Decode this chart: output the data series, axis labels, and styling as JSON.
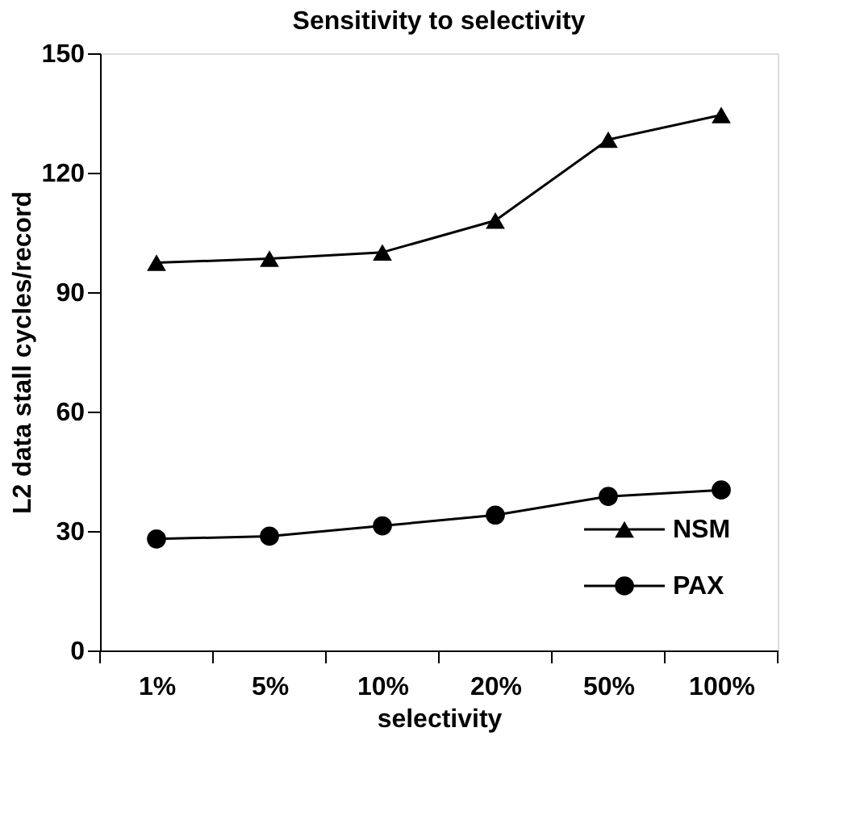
{
  "chart_data": {
    "type": "line",
    "title": "Sensitivity to selectivity",
    "xlabel": "selectivity",
    "ylabel": "L2 data stall cycles/record",
    "categories": [
      "1%",
      "5%",
      "10%",
      "20%",
      "50%",
      "100%"
    ],
    "series": [
      {
        "name": "NSM",
        "color": "#000000",
        "marker": "triangle",
        "values": [
          97.4,
          98.4,
          100,
          108,
          128.3,
          134.5
        ]
      },
      {
        "name": "PAX",
        "color": "#000000",
        "marker": "circle",
        "values": [
          28,
          28.7,
          31.3,
          34,
          38.7,
          40.3
        ]
      }
    ],
    "ylim": [
      0,
      150
    ],
    "yticks": [
      0,
      30,
      60,
      90,
      120,
      150
    ],
    "grid": false,
    "legend": "bottom right",
    "line_style": "solid"
  }
}
